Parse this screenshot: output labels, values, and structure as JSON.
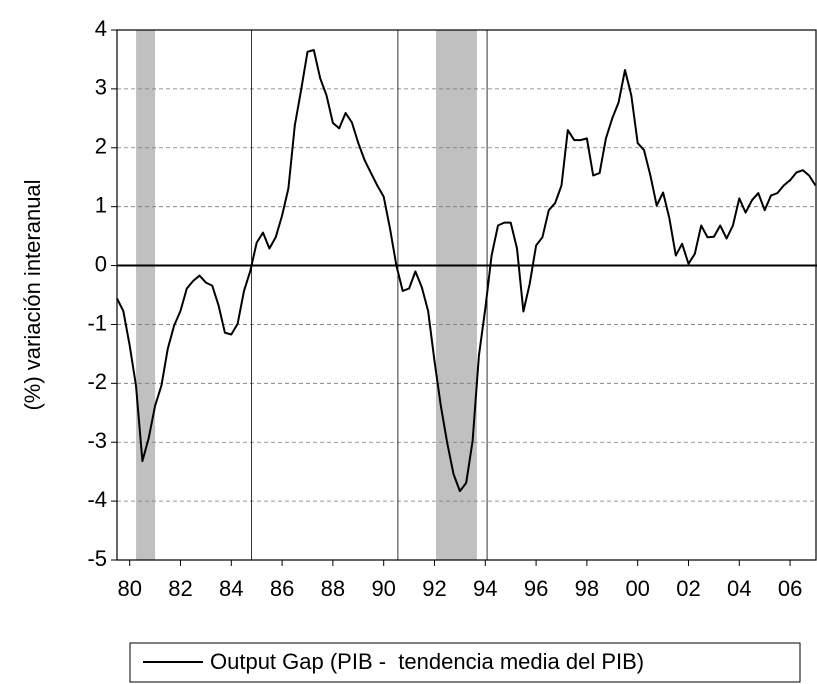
{
  "chart_data": {
    "type": "line",
    "ylabel": "(%) variación interanual",
    "x": [
      1980,
      1980.25,
      1980.5,
      1980.75,
      1981,
      1981.25,
      1981.5,
      1981.75,
      1982,
      1982.25,
      1982.5,
      1982.75,
      1983,
      1983.25,
      1983.5,
      1983.75,
      1984,
      1984.25,
      1984.5,
      1984.75,
      1985,
      1985.25,
      1985.5,
      1985.75,
      1986,
      1986.25,
      1986.5,
      1986.75,
      1987,
      1987.25,
      1987.5,
      1987.75,
      1988,
      1988.25,
      1988.5,
      1988.75,
      1989,
      1989.25,
      1989.5,
      1989.75,
      1990,
      1990.25,
      1990.5,
      1990.75,
      1991,
      1991.25,
      1991.5,
      1991.75,
      1992,
      1992.25,
      1992.5,
      1992.75,
      1993,
      1993.25,
      1993.5,
      1993.75,
      1994,
      1994.25,
      1994.5,
      1994.75,
      1995,
      1995.25,
      1995.5,
      1995.75,
      1996,
      1996.25,
      1996.5,
      1996.75,
      1997,
      1997.25,
      1997.5,
      1997.75,
      1998,
      1998.25,
      1998.5,
      1998.75,
      1999,
      1999.25,
      1999.5,
      1999.75,
      2000,
      2000.25,
      2000.5,
      2000.75,
      2001,
      2001.25,
      2001.5,
      2001.75,
      2002,
      2002.25,
      2002.5,
      2002.75,
      2003,
      2003.25,
      2003.5,
      2003.75,
      2004,
      2004.25,
      2004.5,
      2004.75,
      2005,
      2005.25,
      2005.5,
      2005.75,
      2006,
      2006.25,
      2006.5,
      2006.75,
      2007,
      2007.25,
      2007.5
    ],
    "series": [
      {
        "name": "Output Gap (PIB -  tendencia media del PIB)",
        "color": "#000000",
        "values": [
          -0.56,
          -0.77,
          -1.36,
          -2.04,
          -3.32,
          -2.93,
          -2.38,
          -2.04,
          -1.41,
          -1.02,
          -0.77,
          -0.39,
          -0.26,
          -0.17,
          -0.29,
          -0.34,
          -0.68,
          -1.14,
          -1.17,
          -0.99,
          -0.43,
          -0.09,
          0.39,
          0.56,
          0.29,
          0.48,
          0.85,
          1.31,
          2.38,
          2.98,
          3.63,
          3.66,
          3.18,
          2.89,
          2.42,
          2.33,
          2.59,
          2.43,
          2.08,
          1.79,
          1.57,
          1.36,
          1.17,
          0.63,
          0.0,
          -0.43,
          -0.39,
          -0.1,
          -0.37,
          -0.77,
          -1.62,
          -2.38,
          -3.01,
          -3.54,
          -3.83,
          -3.69,
          -2.98,
          -1.53,
          -0.73,
          0.17,
          0.68,
          0.73,
          0.73,
          0.29,
          -0.78,
          -0.31,
          0.34,
          0.48,
          0.94,
          1.06,
          1.36,
          2.3,
          2.13,
          2.13,
          2.16,
          1.53,
          1.57,
          2.16,
          2.5,
          2.77,
          3.32,
          2.89,
          2.08,
          1.96,
          1.53,
          1.02,
          1.24,
          0.8,
          0.17,
          0.37,
          0.03,
          0.2,
          0.68,
          0.48,
          0.49,
          0.68,
          0.46,
          0.68,
          1.14,
          0.9,
          1.11,
          1.23,
          0.94,
          1.19,
          1.23,
          1.36,
          1.45,
          1.58,
          1.62,
          1.53,
          1.36
        ]
      }
    ],
    "xlim": [
      1980,
      2007.56
    ],
    "xticks": [
      {
        "value": 1980.5,
        "label": "80"
      },
      {
        "value": 1982.5,
        "label": "82"
      },
      {
        "value": 1984.5,
        "label": "84"
      },
      {
        "value": 1986.5,
        "label": "86"
      },
      {
        "value": 1988.5,
        "label": "88"
      },
      {
        "value": 1990.5,
        "label": "90"
      },
      {
        "value": 1992.5,
        "label": "92"
      },
      {
        "value": 1994.5,
        "label": "94"
      },
      {
        "value": 1996.5,
        "label": "96"
      },
      {
        "value": 1998.5,
        "label": "98"
      },
      {
        "value": 2000.5,
        "label": "00"
      },
      {
        "value": 2002.5,
        "label": "02"
      },
      {
        "value": 2004.5,
        "label": "04"
      },
      {
        "value": 2006.5,
        "label": "06"
      }
    ],
    "ylim": [
      -5,
      4
    ],
    "yticks": [
      4,
      3,
      2,
      1,
      0,
      -1,
      -2,
      -3,
      -4,
      -5
    ],
    "grid": true,
    "shaded": [
      [
        1980.75,
        1981.5
      ],
      [
        1992.56,
        1994.17
      ]
    ],
    "vlines": [
      1985.3,
      1991.06,
      1994.57
    ]
  }
}
